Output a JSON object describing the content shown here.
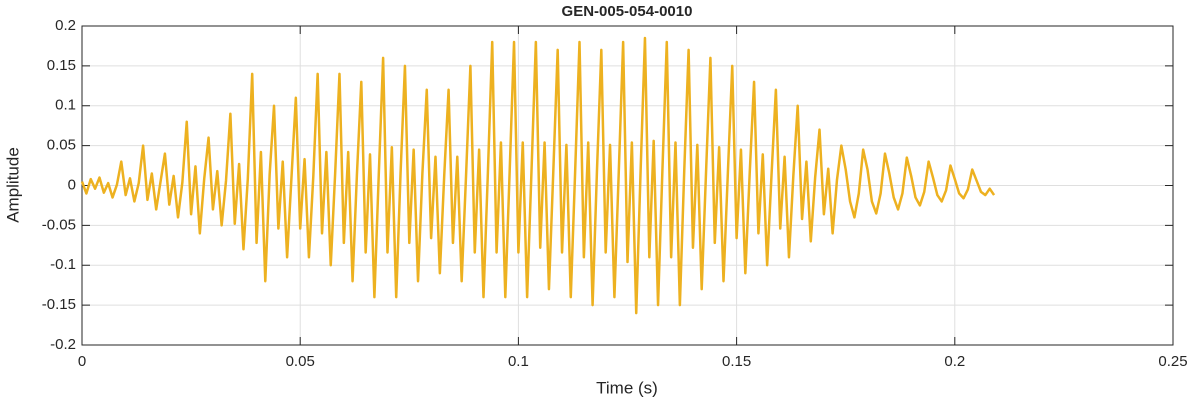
{
  "chart_data": {
    "type": "line",
    "title": "GEN-005-054-0010",
    "xlabel": "Time (s)",
    "ylabel": "Amplitude",
    "x": [
      0,
      0.001,
      0.002,
      0.003,
      0.004,
      0.005,
      0.006,
      0.007,
      0.008,
      0.009,
      0.01,
      0.011,
      0.012,
      0.013,
      0.014,
      0.015,
      0.016,
      0.017,
      0.018,
      0.019,
      0.02,
      0.021,
      0.022,
      0.023,
      0.024,
      0.025,
      0.026,
      0.027,
      0.028,
      0.029,
      0.03,
      0.031,
      0.032,
      0.033,
      0.034,
      0.035,
      0.036,
      0.037,
      0.038,
      0.039,
      0.04,
      0.041,
      0.042,
      0.043,
      0.044,
      0.045,
      0.046,
      0.047,
      0.048,
      0.049,
      0.05,
      0.051,
      0.052,
      0.053,
      0.054,
      0.055,
      0.056,
      0.057,
      0.058,
      0.059,
      0.06,
      0.061,
      0.062,
      0.063,
      0.064,
      0.065,
      0.066,
      0.067,
      0.068,
      0.069,
      0.07,
      0.071,
      0.072,
      0.073,
      0.074,
      0.075,
      0.076,
      0.077,
      0.078,
      0.079,
      0.08,
      0.081,
      0.082,
      0.083,
      0.084,
      0.085,
      0.086,
      0.087,
      0.088,
      0.089,
      0.09,
      0.091,
      0.092,
      0.093,
      0.094,
      0.095,
      0.096,
      0.097,
      0.098,
      0.099,
      0.1,
      0.101,
      0.102,
      0.103,
      0.104,
      0.105,
      0.106,
      0.107,
      0.108,
      0.109,
      0.11,
      0.111,
      0.112,
      0.113,
      0.114,
      0.115,
      0.116,
      0.117,
      0.118,
      0.119,
      0.12,
      0.121,
      0.122,
      0.123,
      0.124,
      0.125,
      0.126,
      0.127,
      0.128,
      0.129,
      0.13,
      0.131,
      0.132,
      0.133,
      0.134,
      0.135,
      0.136,
      0.137,
      0.138,
      0.139,
      0.14,
      0.141,
      0.142,
      0.143,
      0.144,
      0.145,
      0.146,
      0.147,
      0.148,
      0.149,
      0.15,
      0.151,
      0.152,
      0.153,
      0.154,
      0.155,
      0.156,
      0.157,
      0.158,
      0.159,
      0.16,
      0.161,
      0.162,
      0.163,
      0.164,
      0.165,
      0.166,
      0.167,
      0.168,
      0.169,
      0.17,
      0.171,
      0.172,
      0.173,
      0.174,
      0.175,
      0.176,
      0.177,
      0.178,
      0.179,
      0.18,
      0.181,
      0.182,
      0.183,
      0.184,
      0.185,
      0.186,
      0.187,
      0.188,
      0.189,
      0.19,
      0.191,
      0.192,
      0.193,
      0.194,
      0.195,
      0.196,
      0.197,
      0.198,
      0.199,
      0.2,
      0.201,
      0.202,
      0.203,
      0.204,
      0.205,
      0.206,
      0.207,
      0.208,
      0.209
    ],
    "series": [
      {
        "color": "#EDB120",
        "values": [
          0.005,
          -0.01,
          0.008,
          -0.004,
          0.01,
          -0.009,
          0.003,
          -0.015,
          0.001,
          0.03,
          -0.012,
          0.009,
          -0.02,
          0.003,
          0.05,
          -0.018,
          0.015,
          -0.03,
          0.005,
          0.04,
          -0.024,
          0.012,
          -0.04,
          0.004,
          0.08,
          -0.036,
          0.024,
          -0.06,
          0.008,
          0.06,
          -0.03,
          0.018,
          -0.05,
          0.006,
          0.09,
          -0.048,
          0.027,
          -0.08,
          0.009,
          0.14,
          -0.072,
          0.042,
          -0.12,
          0.014,
          0.1,
          -0.054,
          0.03,
          -0.09,
          0.01,
          0.11,
          -0.054,
          0.033,
          -0.09,
          0.011,
          0.14,
          -0.06,
          0.042,
          -0.1,
          0.014,
          0.14,
          -0.072,
          0.042,
          -0.12,
          0.014,
          0.13,
          -0.084,
          0.039,
          -0.14,
          0.013,
          0.16,
          -0.084,
          0.048,
          -0.14,
          0.016,
          0.15,
          -0.072,
          0.045,
          -0.12,
          0.015,
          0.12,
          -0.066,
          0.036,
          -0.11,
          0.012,
          0.12,
          -0.072,
          0.036,
          -0.12,
          0.012,
          0.15,
          -0.084,
          0.045,
          -0.14,
          0.015,
          0.18,
          -0.084,
          0.054,
          -0.14,
          0.018,
          0.18,
          -0.084,
          0.054,
          -0.14,
          0.018,
          0.18,
          -0.078,
          0.054,
          -0.13,
          0.018,
          0.17,
          -0.084,
          0.051,
          -0.14,
          0.017,
          0.18,
          -0.09,
          0.054,
          -0.15,
          0.018,
          0.17,
          -0.084,
          0.051,
          -0.14,
          0.017,
          0.18,
          -0.096,
          0.054,
          -0.16,
          0.018,
          0.185,
          -0.09,
          0.056,
          -0.15,
          0.019,
          0.18,
          -0.09,
          0.054,
          -0.15,
          0.018,
          0.17,
          -0.078,
          0.051,
          -0.13,
          0.017,
          0.16,
          -0.072,
          0.048,
          -0.12,
          0.016,
          0.15,
          -0.066,
          0.045,
          -0.11,
          0.015,
          0.13,
          -0.06,
          0.039,
          -0.1,
          0.013,
          0.12,
          -0.054,
          0.036,
          -0.09,
          0.012,
          0.1,
          -0.042,
          0.03,
          -0.07,
          0.01,
          0.07,
          -0.036,
          0.021,
          -0.06,
          0.007,
          0.05,
          0.02,
          -0.02,
          -0.04,
          -0.01,
          0.045,
          0.02,
          -0.02,
          -0.035,
          -0.01,
          0.04,
          0.015,
          -0.015,
          -0.03,
          -0.01,
          0.035,
          0.012,
          -0.015,
          -0.025,
          -0.008,
          0.03,
          0.01,
          -0.012,
          -0.02,
          -0.006,
          0.025,
          0.008,
          -0.01,
          -0.016,
          -0.005,
          0.02,
          0.006,
          -0.008,
          -0.012,
          -0.004,
          -0.012
        ]
      }
    ],
    "xlim": [
      0,
      0.25
    ],
    "xticks": [
      0,
      0.05,
      0.1,
      0.15,
      0.2,
      0.25
    ],
    "ylim": [
      -0.2,
      0.2
    ],
    "yticks": [
      -0.2,
      -0.15,
      -0.1,
      -0.05,
      0,
      0.05,
      0.1,
      0.15,
      0.2
    ],
    "grid": true
  }
}
